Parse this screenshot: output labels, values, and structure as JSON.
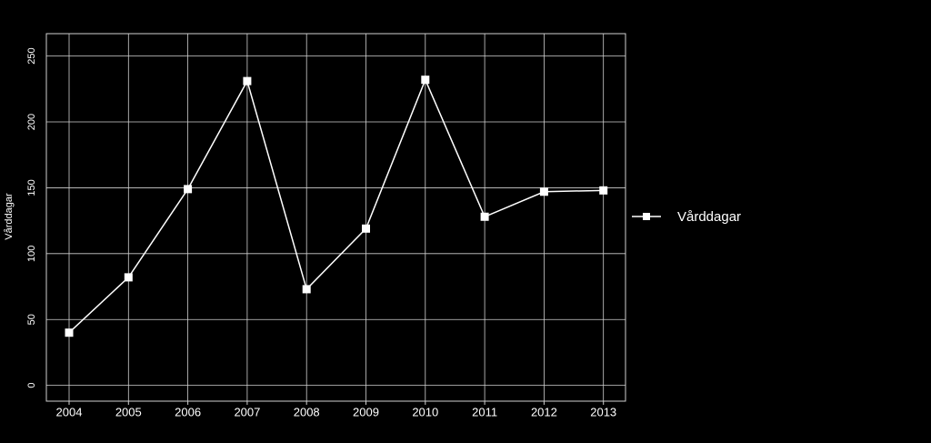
{
  "chart_data": {
    "type": "line",
    "y_label": "Vårddagar",
    "categories": [
      "2004",
      "2005",
      "2006",
      "2007",
      "2008",
      "2009",
      "2010",
      "2011",
      "2012",
      "2013"
    ],
    "series": [
      {
        "name": "Vårddagar",
        "color": "#ffffff",
        "values": [
          40,
          82,
          149,
          231,
          73,
          119,
          232,
          128,
          147,
          148
        ]
      }
    ],
    "ylim": [
      -12,
      267
    ],
    "yticks": [
      0,
      50,
      100,
      150,
      200,
      250
    ],
    "grid": true,
    "legend": "right"
  }
}
